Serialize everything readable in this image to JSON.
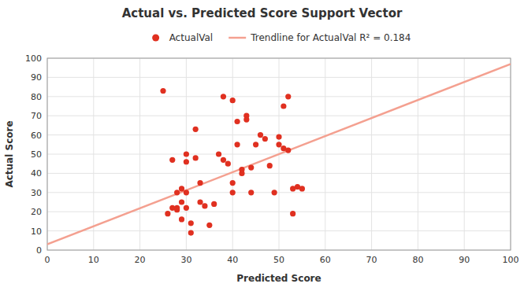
{
  "chart_data": {
    "type": "scatter",
    "title": "Actual vs. Predicted Score Support Vector",
    "xlabel": "Predicted Score",
    "ylabel": "Actual Score",
    "xlim": [
      0,
      100
    ],
    "ylim": [
      0,
      100
    ],
    "xticks": [
      0,
      10,
      20,
      30,
      40,
      50,
      60,
      70,
      80,
      90,
      100
    ],
    "yticks": [
      0,
      10,
      20,
      30,
      40,
      50,
      60,
      70,
      80,
      90,
      100
    ],
    "grid": true,
    "legend": "top",
    "series": [
      {
        "name": "ActualVal",
        "type": "scatter",
        "marker": "circle",
        "color": "#e03020",
        "x": [
          25,
          26,
          27,
          27,
          28,
          28,
          28,
          29,
          29,
          29,
          30,
          30,
          30,
          30,
          31,
          31,
          32,
          32,
          33,
          33,
          34,
          35,
          36,
          37,
          38,
          38,
          39,
          40,
          40,
          40,
          41,
          41,
          42,
          42,
          43,
          43,
          44,
          44,
          45,
          46,
          47,
          48,
          49,
          50,
          50,
          51,
          51,
          52,
          52,
          53,
          53,
          54,
          55
        ],
        "values": [
          83,
          19,
          47,
          22,
          30,
          21,
          22,
          32,
          25,
          16,
          30,
          22,
          46,
          50,
          9,
          14,
          48,
          63,
          25,
          35,
          23,
          13,
          24,
          50,
          47,
          80,
          45,
          30,
          35,
          78,
          67,
          55,
          42,
          40,
          70,
          68,
          43,
          30,
          55,
          60,
          58,
          44,
          30,
          55,
          59,
          75,
          53,
          80,
          52,
          32,
          19,
          33,
          32
        ]
      },
      {
        "name": "Trendline for ActualVal R² = 0.184",
        "type": "line",
        "line_style": "solid",
        "color": "#f4a090",
        "x": [
          0,
          100
        ],
        "values": [
          3,
          97
        ]
      }
    ]
  }
}
